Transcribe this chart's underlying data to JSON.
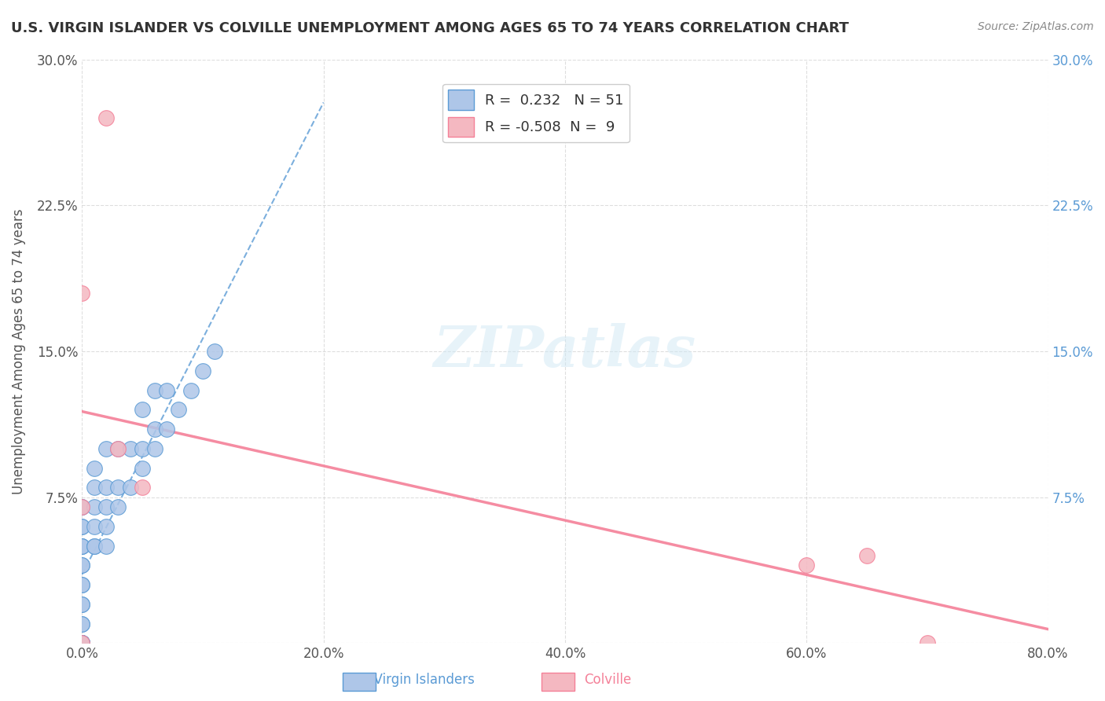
{
  "title": "U.S. VIRGIN ISLANDER VS COLVILLE UNEMPLOYMENT AMONG AGES 65 TO 74 YEARS CORRELATION CHART",
  "source": "Source: ZipAtlas.com",
  "ylabel": "Unemployment Among Ages 65 to 74 years",
  "xlim": [
    0.0,
    0.8
  ],
  "ylim": [
    0.0,
    0.3
  ],
  "xticks": [
    0.0,
    0.2,
    0.4,
    0.6,
    0.8
  ],
  "xticklabels": [
    "0.0%",
    "20.0%",
    "40.0%",
    "60.0%",
    "80.0%"
  ],
  "yticks": [
    0.0,
    0.075,
    0.15,
    0.225,
    0.3
  ],
  "yticklabels": [
    "",
    "7.5%",
    "15.0%",
    "22.5%",
    "30.0%"
  ],
  "vi_R": 0.232,
  "vi_N": 51,
  "col_R": -0.508,
  "col_N": 9,
  "vi_color": "#aec6e8",
  "col_color": "#f4b8c1",
  "vi_line_color": "#5b9bd5",
  "col_line_color": "#f48098",
  "background_color": "#ffffff",
  "grid_color": "#d0d0d0",
  "watermark": "ZIPatlas",
  "vi_scatter_x": [
    0.0,
    0.0,
    0.0,
    0.0,
    0.0,
    0.0,
    0.0,
    0.0,
    0.0,
    0.0,
    0.0,
    0.0,
    0.0,
    0.0,
    0.0,
    0.0,
    0.0,
    0.0,
    0.0,
    0.0,
    0.0,
    0.0,
    0.0,
    0.01,
    0.01,
    0.01,
    0.01,
    0.01,
    0.01,
    0.02,
    0.02,
    0.02,
    0.02,
    0.02,
    0.03,
    0.03,
    0.03,
    0.04,
    0.04,
    0.05,
    0.05,
    0.05,
    0.06,
    0.06,
    0.06,
    0.07,
    0.07,
    0.08,
    0.09,
    0.1,
    0.11
  ],
  "vi_scatter_y": [
    0.0,
    0.0,
    0.0,
    0.0,
    0.0,
    0.0,
    0.0,
    0.0,
    0.01,
    0.01,
    0.02,
    0.02,
    0.03,
    0.03,
    0.04,
    0.04,
    0.05,
    0.05,
    0.05,
    0.06,
    0.06,
    0.07,
    0.07,
    0.05,
    0.05,
    0.06,
    0.07,
    0.08,
    0.09,
    0.05,
    0.06,
    0.07,
    0.08,
    0.1,
    0.07,
    0.08,
    0.1,
    0.08,
    0.1,
    0.09,
    0.1,
    0.12,
    0.1,
    0.11,
    0.13,
    0.11,
    0.13,
    0.12,
    0.13,
    0.14,
    0.15
  ],
  "col_scatter_x": [
    0.0,
    0.0,
    0.0,
    0.02,
    0.03,
    0.05,
    0.6,
    0.65,
    0.7
  ],
  "col_scatter_y": [
    0.0,
    0.07,
    0.18,
    0.27,
    0.1,
    0.08,
    0.04,
    0.045,
    0.0
  ]
}
